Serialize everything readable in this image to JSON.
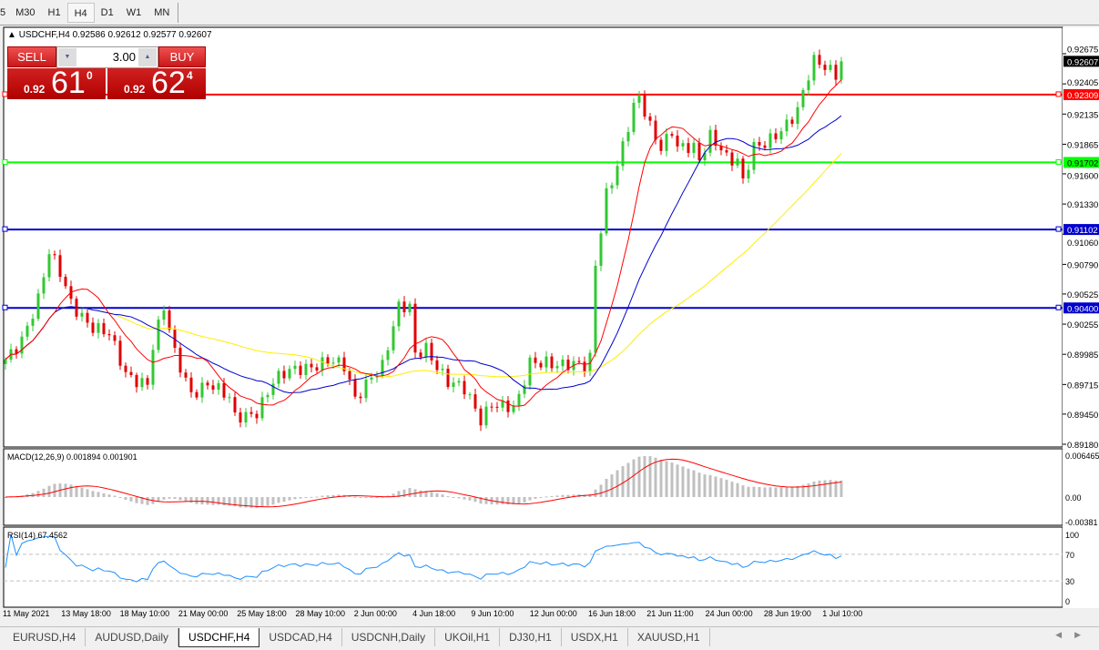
{
  "timeframes": [
    "5",
    "M30",
    "H1",
    "H4",
    "D1",
    "W1",
    "MN"
  ],
  "active_timeframe": "H4",
  "chart": {
    "symbol_line": "USDCHF,H4  0.92586 0.92612 0.92577 0.92607",
    "symbol": "USDCHF",
    "period": "H4",
    "open": "0.92586",
    "high": "0.92612",
    "low": "0.92577",
    "close": "0.92607"
  },
  "trade": {
    "sell_label": "SELL",
    "buy_label": "BUY",
    "lot": "3.00",
    "sell_prefix": "0.92",
    "sell_big": "61",
    "sell_sup": "0",
    "buy_prefix": "0.92",
    "buy_big": "62",
    "buy_sup": "4"
  },
  "price_axis": [
    "0.92675",
    "0.92405",
    "0.92135",
    "0.91865",
    "0.91600",
    "0.91330",
    "0.91060",
    "0.90790",
    "0.90525",
    "0.90255",
    "0.89985",
    "0.89715",
    "0.89450",
    "0.89180"
  ],
  "levels": [
    {
      "price": "0.92309",
      "color": "#ff0000"
    },
    {
      "price": "0.91702",
      "color": "#00ff00"
    },
    {
      "price": "0.91102",
      "color": "#0000cc"
    },
    {
      "price": "0.90400",
      "color": "#0000cc"
    }
  ],
  "current_price": "0.92607",
  "macd": {
    "label": "MACD(12,26,9) 0.001894 0.001901",
    "axis": [
      "0.006465",
      "0.00",
      "-0.00381"
    ]
  },
  "rsi": {
    "label": "RSI(14) 67.4562",
    "axis": [
      "100",
      "70",
      "30",
      "0"
    ]
  },
  "time_axis": [
    "11 May 2021",
    "13 May 18:00",
    "18 May 10:00",
    "21 May 00:00",
    "25 May 18:00",
    "28 May 10:00",
    "2 Jun 00:00",
    "4 Jun 18:00",
    "9 Jun 10:00",
    "12 Jun 00:00",
    "16 Jun 18:00",
    "21 Jun 11:00",
    "24 Jun 00:00",
    "28 Jun 19:00",
    "1 Jul 10:00"
  ],
  "tabs": [
    "EURUSD,H4",
    "AUDUSD,Daily",
    "USDCHF,H4",
    "USDCAD,H4",
    "USDCNH,Daily",
    "UKOil,H1",
    "DJ30,H1",
    "USDX,H1",
    "XAUUSD,H1"
  ],
  "active_tab": "USDCHF,H4",
  "colors": {
    "bull": "#32c832",
    "bear": "#e00000",
    "ma_fast": "#ff0000",
    "ma_mid": "#0000cc",
    "ma_slow": "#ffee00",
    "macd_hist": "#c0c0c0",
    "macd_signal": "#ff0000",
    "rsi": "#1e90ff"
  },
  "chart_data": {
    "type": "candlestick",
    "bars": 154,
    "price_range": [
      0.8918,
      0.92675
    ],
    "close_path": [
      [
        0,
        0.89938
      ],
      [
        3,
        0.90141
      ],
      [
        6,
        0.90467
      ],
      [
        8,
        0.90875
      ],
      [
        10,
        0.90712
      ],
      [
        12,
        0.90467
      ],
      [
        16,
        0.90223
      ],
      [
        19,
        0.90141
      ],
      [
        22,
        0.89816
      ],
      [
        26,
        0.89734
      ],
      [
        27,
        0.9006
      ],
      [
        29,
        0.90386
      ],
      [
        31,
        0.89978
      ],
      [
        34,
        0.89653
      ],
      [
        37,
        0.89734
      ],
      [
        41,
        0.89571
      ],
      [
        42,
        0.89408
      ],
      [
        46,
        0.8949
      ],
      [
        49,
        0.89734
      ],
      [
        52,
        0.89816
      ],
      [
        56,
        0.89897
      ],
      [
        59,
        0.89938
      ],
      [
        62,
        0.89856
      ],
      [
        64,
        0.89571
      ],
      [
        66,
        0.89734
      ],
      [
        67,
        0.89816
      ],
      [
        69,
        0.89897
      ],
      [
        72,
        0.90386
      ],
      [
        74,
        0.90386
      ],
      [
        75,
        0.89978
      ],
      [
        77,
        0.9006
      ],
      [
        81,
        0.89734
      ],
      [
        84,
        0.89653
      ],
      [
        87,
        0.89408
      ],
      [
        89,
        0.89571
      ],
      [
        93,
        0.8949
      ],
      [
        94,
        0.89571
      ],
      [
        96,
        0.89897
      ],
      [
        99,
        0.89938
      ],
      [
        102,
        0.89897
      ],
      [
        106,
        0.89856
      ],
      [
        107,
        0.89938
      ],
      [
        108,
        0.90793
      ],
      [
        110,
        0.91445
      ],
      [
        112,
        0.91689
      ],
      [
        113,
        0.91852
      ],
      [
        115,
        0.92178
      ],
      [
        116,
        0.9226
      ],
      [
        118,
        0.92015
      ],
      [
        120,
        0.91852
      ],
      [
        122,
        0.92015
      ],
      [
        123,
        0.91852
      ],
      [
        126,
        0.91811
      ],
      [
        127,
        0.91689
      ],
      [
        129,
        0.91934
      ],
      [
        131,
        0.91852
      ],
      [
        132,
        0.91771
      ],
      [
        134,
        0.9173
      ],
      [
        135,
        0.91526
      ],
      [
        137,
        0.91811
      ],
      [
        139,
        0.91852
      ],
      [
        142,
        0.92015
      ],
      [
        145,
        0.92178
      ],
      [
        147,
        0.92463
      ],
      [
        148,
        0.92585
      ],
      [
        150,
        0.92545
      ],
      [
        152,
        0.92504
      ],
      [
        153,
        0.92607
      ]
    ]
  }
}
